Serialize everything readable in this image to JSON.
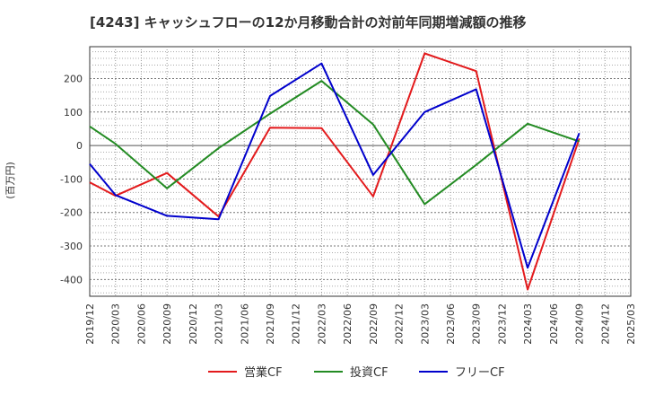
{
  "chart_data": {
    "type": "line",
    "title": "[4243]  キャッシュフローの12か月移動合計の対前年同期増減額の推移",
    "ylabel": "(百万円)",
    "xlabel": "",
    "ylim": [
      -450,
      295
    ],
    "yticks": [
      -400,
      -300,
      -200,
      -100,
      0,
      100,
      200
    ],
    "x": [
      "2019/12",
      "2020/03",
      "2020/06",
      "2020/09",
      "2020/12",
      "2021/03",
      "2021/06",
      "2021/09",
      "2021/12",
      "2022/03",
      "2022/06",
      "2022/09",
      "2022/12",
      "2023/03",
      "2023/06",
      "2023/09",
      "2023/12",
      "2024/03",
      "2024/06",
      "2024/09",
      "2024/12",
      "2025/03"
    ],
    "grid": true,
    "legend_position": "bottom",
    "series": [
      {
        "name": "営業CF",
        "color": "#e31a1c",
        "values": [
          -110,
          -150,
          null,
          -82,
          null,
          -212,
          null,
          53,
          null,
          52,
          null,
          -152,
          null,
          275,
          null,
          222,
          null,
          -430,
          null,
          20,
          null,
          null
        ]
      },
      {
        "name": "投資CF",
        "color": "#238b23",
        "values": [
          57,
          5,
          null,
          -128,
          null,
          -8,
          null,
          95,
          null,
          193,
          null,
          63,
          null,
          -175,
          null,
          -58,
          null,
          65,
          null,
          12,
          null,
          null
        ]
      },
      {
        "name": "フリーCF",
        "color": "#0000cc",
        "values": [
          -55,
          -148,
          null,
          -210,
          null,
          -220,
          null,
          148,
          null,
          245,
          null,
          -88,
          null,
          100,
          null,
          168,
          null,
          -365,
          null,
          37,
          null,
          null
        ]
      }
    ]
  }
}
